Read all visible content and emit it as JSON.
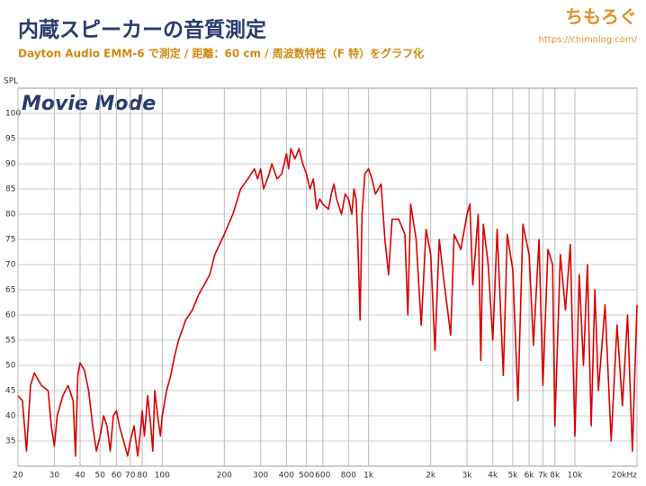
{
  "header": {
    "logo": "ちもろぐ",
    "url": "https://chimolog.com/"
  },
  "chart_data": {
    "type": "line",
    "title": "内蔵スピーカーの音質測定",
    "subtitle": "Dayton Audio EMM-6 で測定 / 距離：60 cm / 周波数特性（F 特）をグラフ化",
    "annotation": "Movie Mode",
    "ylabel": "SPL",
    "log_x": true,
    "grid": true,
    "xlim": [
      20,
      20000
    ],
    "ylim": [
      30,
      105
    ],
    "xticks": [
      20,
      30,
      40,
      50,
      60,
      70,
      80,
      100,
      200,
      300,
      400,
      500,
      600,
      800,
      {
        "value": 1000,
        "label": "1k"
      },
      {
        "value": 2000,
        "label": "2k"
      },
      {
        "value": 3000,
        "label": "3k"
      },
      {
        "value": 4000,
        "label": "4k"
      },
      {
        "value": 5000,
        "label": "5k"
      },
      {
        "value": 6000,
        "label": "6k"
      },
      {
        "value": 7000,
        "label": "7k"
      },
      {
        "value": 8000,
        "label": "8k"
      },
      {
        "value": 10000,
        "label": "10k"
      },
      {
        "value": 20000,
        "label": "20kHz"
      }
    ],
    "yticks": [
      35,
      40,
      45,
      50,
      55,
      60,
      65,
      70,
      75,
      80,
      85,
      90,
      95,
      100
    ],
    "series": [
      {
        "name": "Movie Mode",
        "color": "#d90000",
        "x": [
          20,
          21,
          22,
          23,
          24,
          26,
          28,
          29,
          30,
          31,
          33,
          35,
          37,
          38,
          39,
          40,
          42,
          44,
          46,
          48,
          50,
          52,
          54,
          56,
          58,
          60,
          62,
          65,
          68,
          70,
          73,
          76,
          78,
          80,
          82,
          85,
          88,
          90,
          92,
          95,
          98,
          100,
          105,
          110,
          115,
          120,
          130,
          140,
          150,
          160,
          170,
          180,
          200,
          220,
          240,
          260,
          280,
          290,
          300,
          310,
          330,
          340,
          360,
          380,
          400,
          410,
          420,
          440,
          460,
          480,
          500,
          520,
          540,
          560,
          580,
          600,
          640,
          660,
          680,
          700,
          740,
          770,
          800,
          830,
          850,
          870,
          890,
          910,
          930,
          960,
          1000,
          1040,
          1080,
          1150,
          1200,
          1250,
          1300,
          1400,
          1500,
          1550,
          1600,
          1700,
          1800,
          1900,
          2000,
          2100,
          2200,
          2300,
          2500,
          2600,
          2800,
          3000,
          3100,
          3200,
          3400,
          3500,
          3600,
          3800,
          4000,
          4200,
          4500,
          4700,
          5000,
          5300,
          5600,
          6000,
          6300,
          6700,
          7000,
          7400,
          7800,
          8000,
          8500,
          9000,
          9500,
          10000,
          10500,
          11000,
          11500,
          12000,
          12500,
          13000,
          14000,
          15000,
          16000,
          17000,
          18000,
          19000,
          20000
        ],
        "values": [
          44,
          43,
          33,
          46,
          48.5,
          46,
          45,
          38,
          34,
          40,
          44,
          46,
          43,
          32,
          48,
          50.5,
          49,
          45,
          38,
          33,
          36,
          40,
          38,
          33,
          40,
          41,
          38,
          35,
          32,
          35,
          38,
          32,
          36,
          41,
          36,
          44,
          38,
          33,
          45,
          40,
          36,
          40,
          45,
          48,
          52,
          55,
          59,
          61,
          64,
          66,
          68,
          72,
          76,
          80,
          85,
          87,
          89,
          87,
          89,
          85,
          88,
          90,
          87,
          88,
          92,
          89,
          93,
          91,
          93,
          90,
          88,
          85,
          87,
          81,
          83,
          82,
          81,
          84,
          86,
          83,
          80,
          84,
          83,
          80,
          85,
          83,
          73,
          59,
          80,
          88,
          89,
          87,
          84,
          86,
          75,
          68,
          79,
          79,
          76,
          60,
          82,
          75,
          58,
          77,
          72,
          53,
          75,
          68,
          56,
          76,
          73,
          80,
          82,
          66,
          80,
          51,
          78,
          70,
          55,
          77,
          48,
          76,
          69,
          43,
          78,
          72,
          54,
          75,
          46,
          73,
          70,
          38,
          72,
          61,
          74,
          36,
          68,
          50,
          70,
          38,
          65,
          45,
          62,
          35,
          58,
          42,
          60,
          33,
          62
        ]
      }
    ]
  }
}
